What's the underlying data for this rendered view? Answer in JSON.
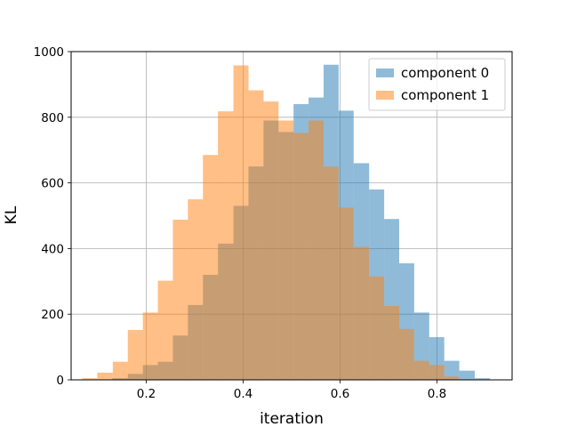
{
  "chart_data": {
    "type": "bar",
    "subtype": "overlapping-histogram",
    "xlabel": "iteration",
    "ylabel": "KL",
    "xlim": [
      0.045,
      0.955
    ],
    "ylim": [
      0,
      1000
    ],
    "xticks": [
      0.2,
      0.4,
      0.6,
      0.8
    ],
    "xtick_labels": [
      "0.2",
      "0.4",
      "0.6",
      "0.8"
    ],
    "yticks": [
      0,
      200,
      400,
      600,
      800,
      1000
    ],
    "ytick_labels": [
      "0",
      "200",
      "400",
      "600",
      "800",
      "1000"
    ],
    "grid": true,
    "legend_position": "upper-right",
    "series": [
      {
        "name": "component 0",
        "color": "#1f77b4",
        "alpha": 0.5,
        "bin_edges": [
          0.13,
          0.162,
          0.193,
          0.224,
          0.255,
          0.286,
          0.317,
          0.348,
          0.38,
          0.411,
          0.442,
          0.473,
          0.504,
          0.535,
          0.566,
          0.597,
          0.628,
          0.66,
          0.691,
          0.722,
          0.753,
          0.784,
          0.815,
          0.846,
          0.878,
          0.909
        ],
        "counts": [
          5,
          18,
          45,
          55,
          135,
          228,
          320,
          415,
          530,
          650,
          790,
          755,
          840,
          860,
          960,
          820,
          660,
          580,
          490,
          355,
          205,
          130,
          58,
          28,
          5
        ]
      },
      {
        "name": "component 1",
        "color": "#ff7f0e",
        "alpha": 0.5,
        "bin_edges": [
          0.068,
          0.099,
          0.131,
          0.162,
          0.193,
          0.224,
          0.255,
          0.286,
          0.317,
          0.348,
          0.38,
          0.411,
          0.442,
          0.473,
          0.504,
          0.535,
          0.566,
          0.597,
          0.628,
          0.66,
          0.691,
          0.722,
          0.753,
          0.784,
          0.815,
          0.846
        ],
        "counts": [
          5,
          22,
          55,
          152,
          205,
          302,
          488,
          550,
          685,
          818,
          958,
          882,
          848,
          790,
          752,
          790,
          650,
          525,
          405,
          315,
          225,
          155,
          58,
          45,
          10
        ]
      }
    ]
  }
}
